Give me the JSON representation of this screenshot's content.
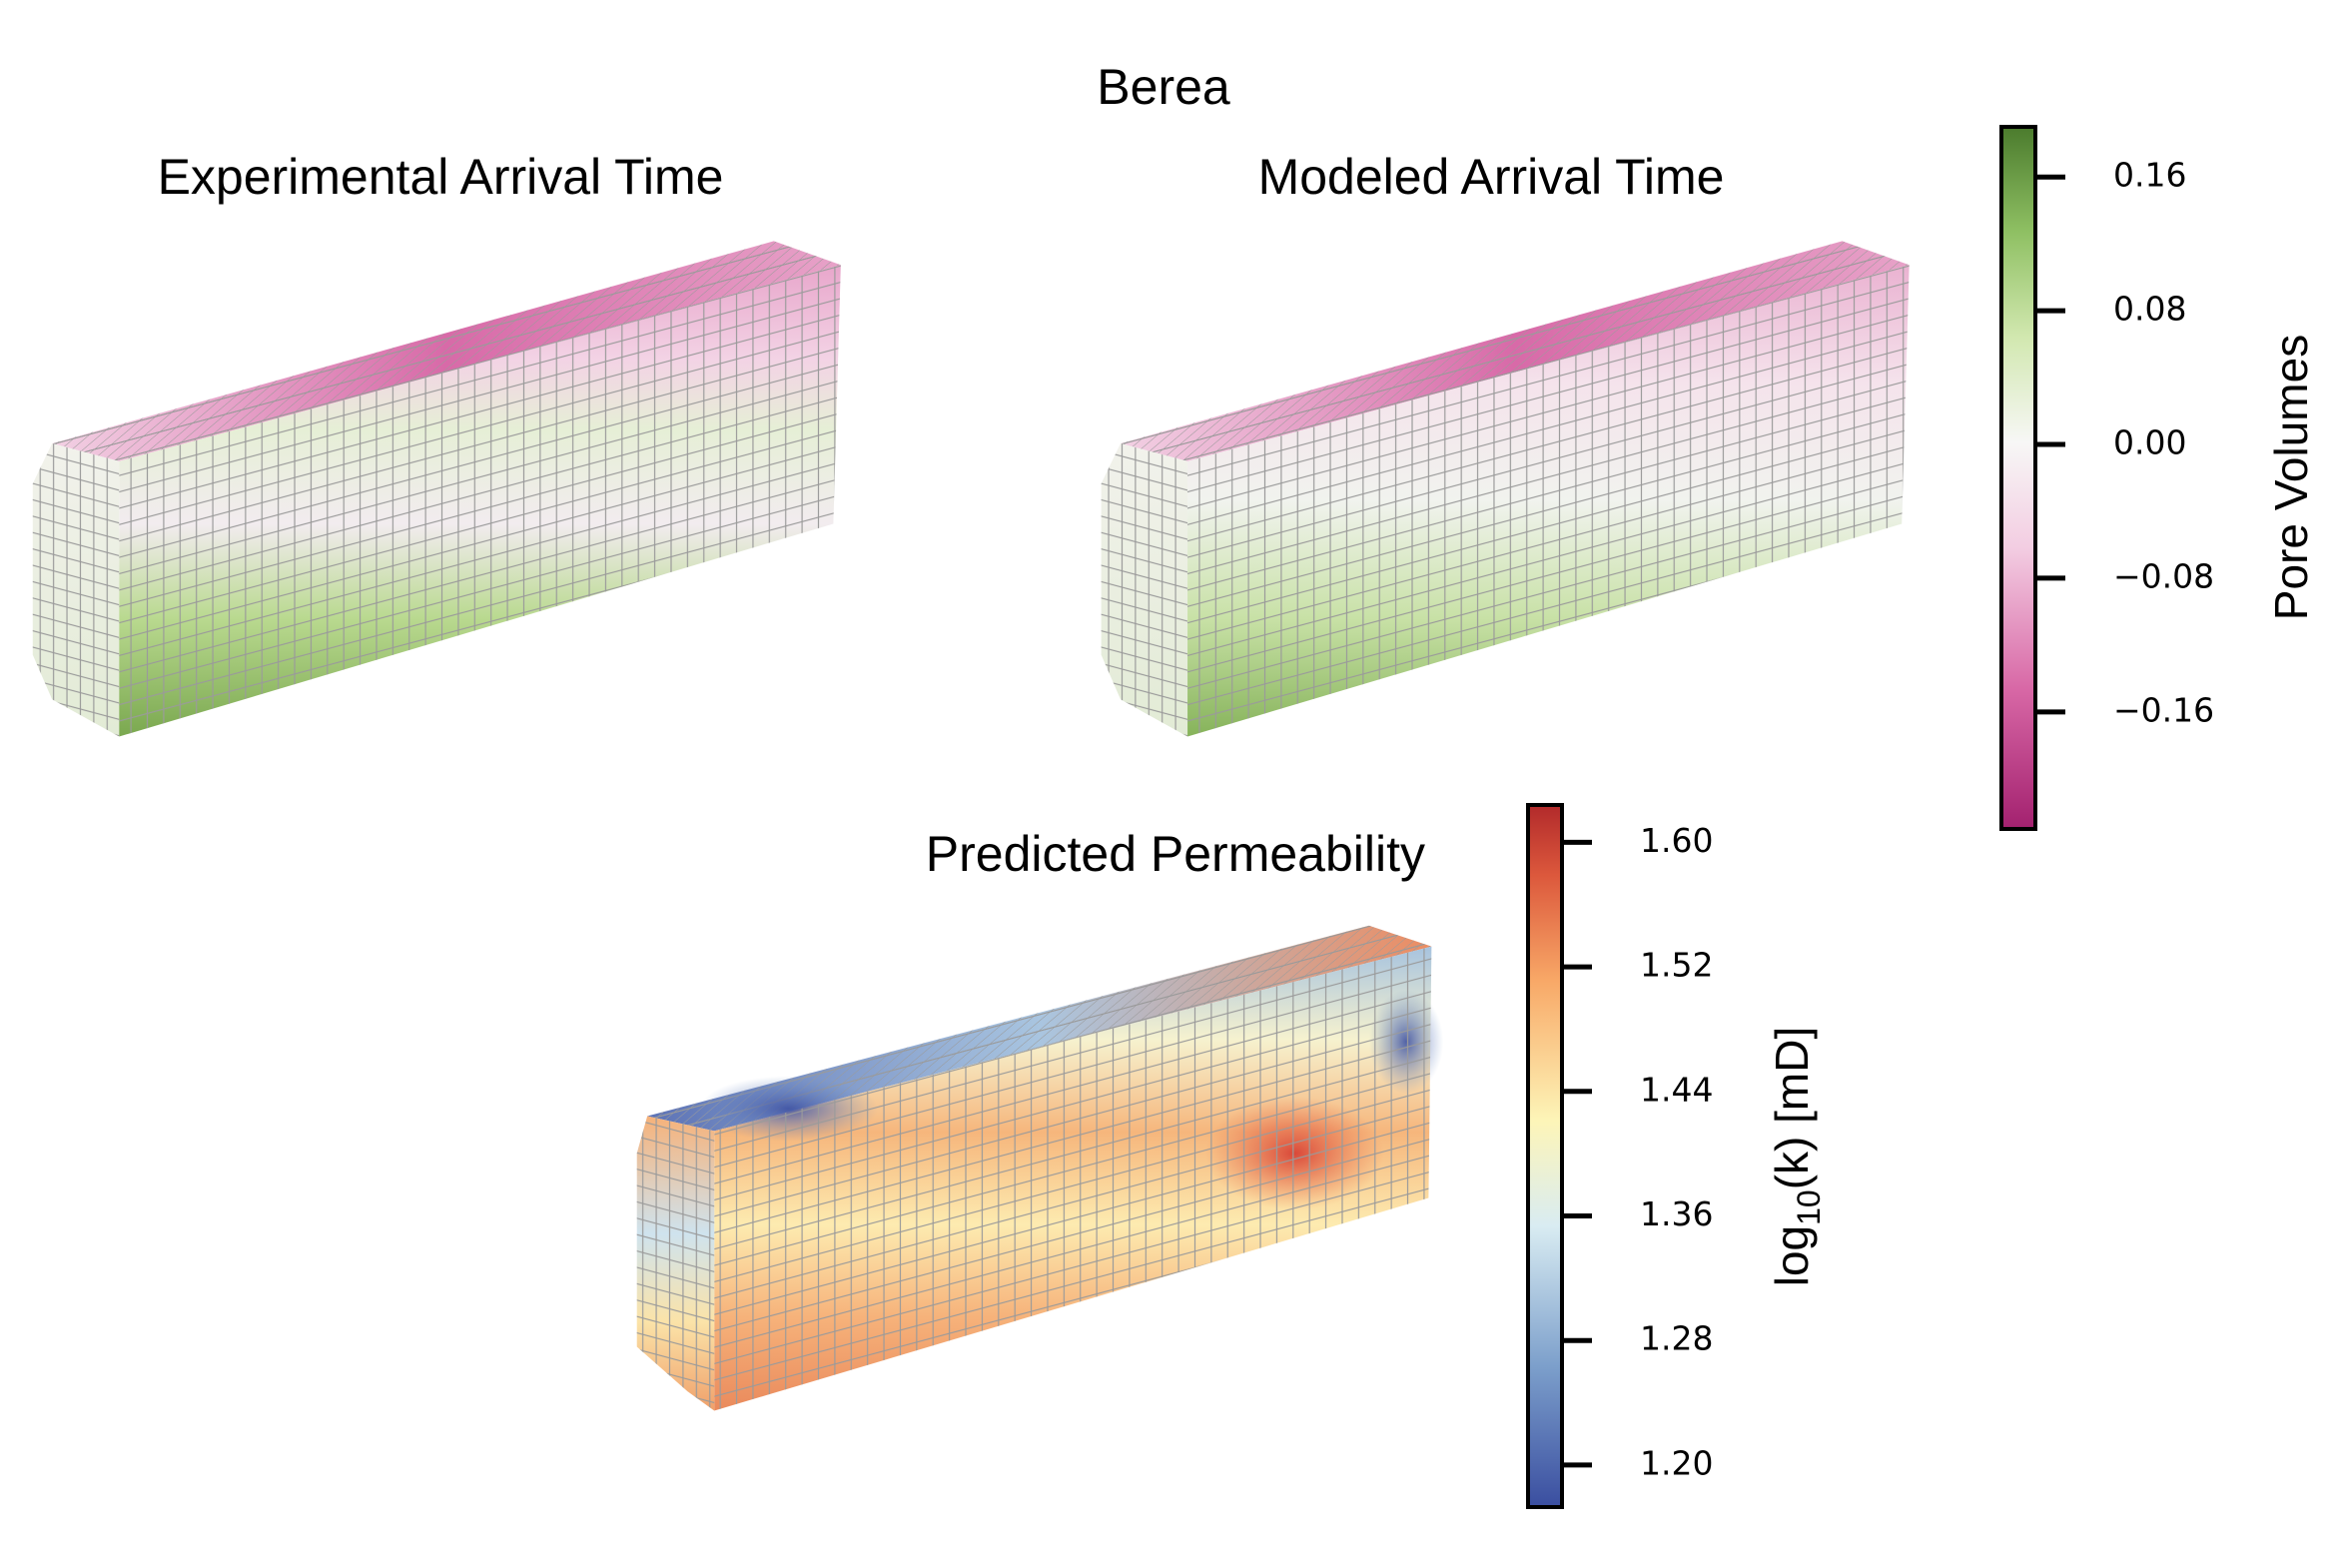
{
  "title": "Berea",
  "panels": [
    {
      "title": "Experimental Arrival Time"
    },
    {
      "title": "Modeled Arrival Time"
    },
    {
      "title": "Predicted Permeability"
    }
  ],
  "colorbars": [
    {
      "label": "Pore Volumes",
      "lim": [
        -0.23,
        0.19
      ],
      "ticks": [
        0.16,
        0.08,
        {
          "value": 0,
          "label": "0.00"
        },
        {
          "value": -0.08,
          "label": "−0.08"
        },
        {
          "value": -0.16,
          "label": "−0.16"
        }
      ]
    },
    {
      "label_parts": [
        "log",
        "10",
        "(k) [mD]"
      ],
      "lim": [
        1.173,
        1.624
      ],
      "ticks": [
        {
          "value": 1.6,
          "label": "1.60"
        },
        1.52,
        1.44,
        1.36,
        1.28,
        {
          "value": 1.2,
          "label": "1.20"
        }
      ]
    }
  ]
}
